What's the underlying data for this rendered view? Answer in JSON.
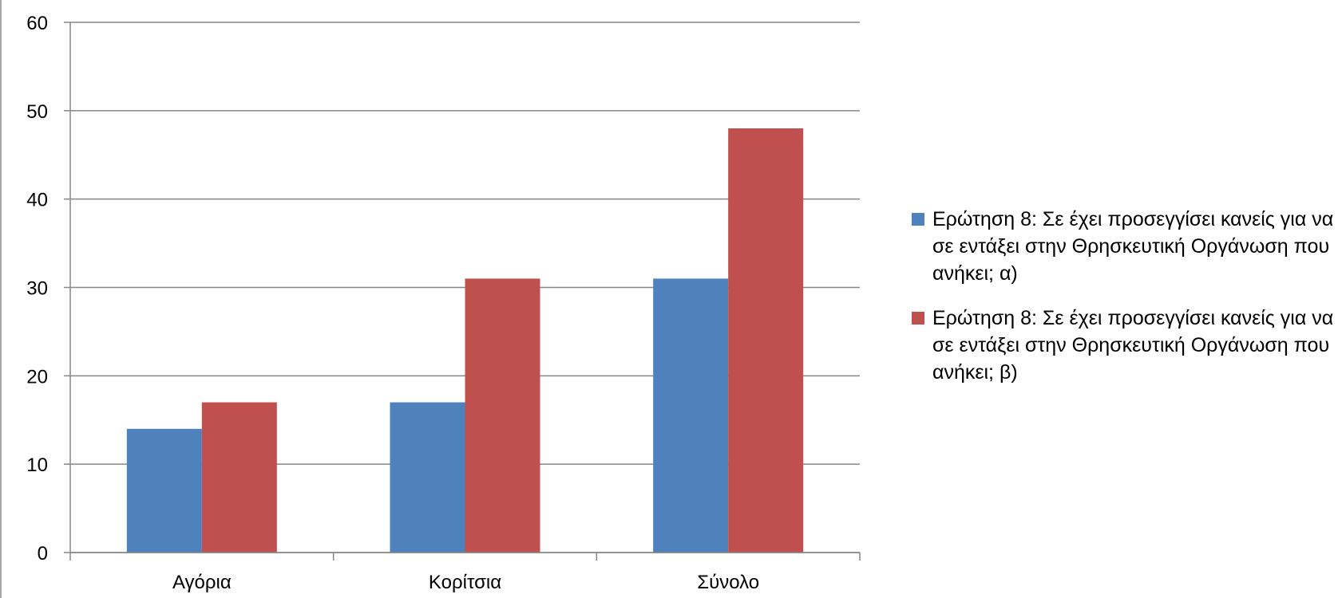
{
  "chart_data": {
    "type": "bar",
    "categories": [
      "Αγόρια",
      "Κορίτσια",
      "Σύνολο"
    ],
    "series": [
      {
        "name": "Ερώτηση 8: Σε έχει προσεγγίσει κανείς για να σε εντάξει στην Θρησκευτική Οργάνωση που ανήκει; α)",
        "color": "#4f81bd",
        "values": [
          14,
          17,
          31
        ]
      },
      {
        "name": "Ερώτηση 8: Σε έχει προσεγγίσει κανείς για να σε εντάξει στην Θρησκευτική Οργάνωση που ανήκει; β)",
        "color": "#c0504d",
        "values": [
          17,
          31,
          48
        ]
      }
    ],
    "ylim": [
      0,
      60
    ],
    "yticks": [
      0,
      10,
      20,
      30,
      40,
      50,
      60
    ],
    "grid": true,
    "legend_position": "right",
    "title": "",
    "xlabel": "",
    "ylabel": ""
  }
}
